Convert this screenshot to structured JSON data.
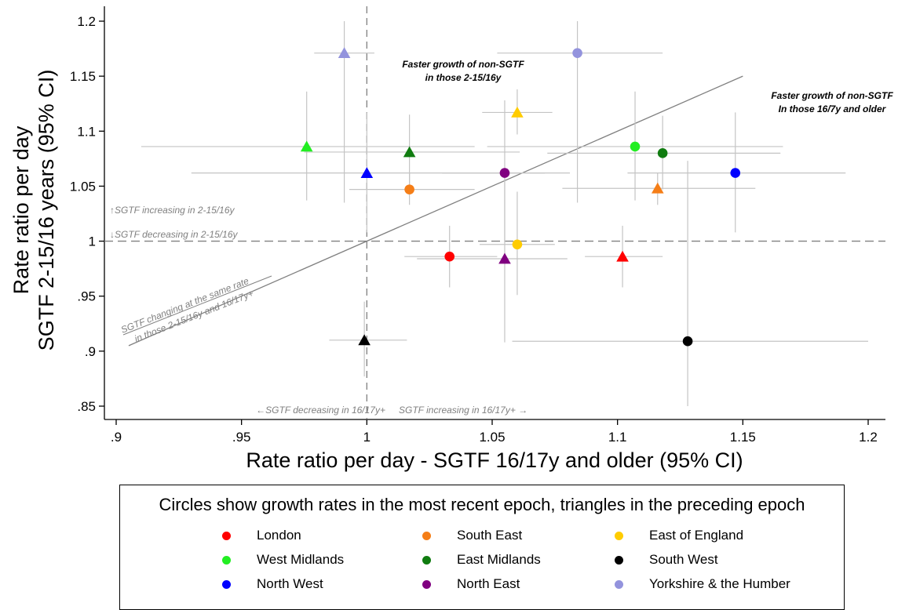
{
  "chart_data": {
    "type": "scatter",
    "xlabel": "Rate ratio per day - SGTF 16/17y and older (95% CI)",
    "ylabel_line1": "Rate ratio per day",
    "ylabel_line2": "SGTF 2-15/16 years (95% CI)",
    "xlim": [
      0.9,
      1.2
    ],
    "ylim": [
      0.85,
      1.2
    ],
    "x_ticks": [
      0.9,
      0.95,
      1.0,
      1.05,
      1.1,
      1.15,
      1.2
    ],
    "x_tick_labels": [
      ".9",
      ".95",
      "1",
      "1.05",
      "1.1",
      "1.15",
      "1.2"
    ],
    "y_ticks": [
      0.85,
      0.9,
      0.95,
      1.0,
      1.05,
      1.1,
      1.15,
      1.2
    ],
    "y_tick_labels": [
      ".85",
      ".9",
      ".95",
      "1",
      "1.05",
      "1.1",
      "1.15",
      "1.2"
    ],
    "grid": false,
    "reference_lines": {
      "vertical_x": 1.0,
      "horizontal_y": 1.0,
      "equal_rate_line": true
    },
    "annotations": {
      "top_center": [
        "Faster growth of non-SGTF",
        "in those 2-15/16y"
      ],
      "top_right": [
        "Faster growth of non-SGTF",
        "In those 16/7y and older"
      ],
      "h_above": "↑SGTF increasing in 2-15/16y",
      "h_below": "↓SGTF decreasing in 2-15/16y",
      "diag": [
        "SGTF changing at the same rate",
        "in those 2-15/16y and 16/17y+"
      ],
      "v_left": "←SGTF decreasing in 16/17y+",
      "v_right": "SGTF increasing in 16/17y+ →"
    },
    "legend_title": "Circles show growth rates in the most recent epoch, triangles in the preceding epoch",
    "series": [
      {
        "name": "London",
        "color": "#ff0000",
        "circle": {
          "x": 1.033,
          "y": 0.986,
          "xerr": [
            1.015,
            1.052
          ],
          "yerr": [
            0.958,
            1.014
          ]
        },
        "triangle": {
          "x": 1.102,
          "y": 0.986,
          "xerr": [
            1.087,
            1.118
          ],
          "yerr": [
            0.958,
            1.014
          ]
        }
      },
      {
        "name": "South East",
        "color": "#f57e17",
        "circle": {
          "x": 1.017,
          "y": 1.047,
          "xerr": [
            0.993,
            1.043
          ],
          "yerr": [
            1.033,
            1.062
          ]
        },
        "triangle": {
          "x": 1.116,
          "y": 1.048,
          "xerr": [
            1.078,
            1.155
          ],
          "yerr": [
            1.033,
            1.062
          ]
        }
      },
      {
        "name": "East of England",
        "color": "#ffcc00",
        "circle": {
          "x": 1.06,
          "y": 0.997,
          "xerr": [
            1.045,
            1.075
          ],
          "yerr": [
            0.951,
            1.045
          ]
        },
        "triangle": {
          "x": 1.06,
          "y": 1.117,
          "xerr": [
            1.046,
            1.074
          ],
          "yerr": [
            1.097,
            1.138
          ]
        }
      },
      {
        "name": "West Midlands",
        "color": "#22ee22",
        "circle": {
          "x": 1.107,
          "y": 1.086,
          "xerr": [
            1.048,
            1.166
          ],
          "yerr": [
            1.037,
            1.136
          ]
        },
        "triangle": {
          "x": 0.976,
          "y": 1.086,
          "xerr": [
            0.91,
            1.043
          ],
          "yerr": [
            1.037,
            1.136
          ]
        }
      },
      {
        "name": "East Midlands",
        "color": "#107c10",
        "circle": {
          "x": 1.118,
          "y": 1.08,
          "xerr": [
            1.072,
            1.165
          ],
          "yerr": [
            1.047,
            1.114
          ]
        },
        "triangle": {
          "x": 1.017,
          "y": 1.081,
          "xerr": [
            0.975,
            1.061
          ],
          "yerr": [
            1.047,
            1.115
          ]
        }
      },
      {
        "name": "South West",
        "color": "#000000",
        "circle": {
          "x": 1.128,
          "y": 0.909,
          "xerr": [
            1.058,
            1.2
          ],
          "yerr": [
            0.85,
            1.073
          ]
        },
        "triangle": {
          "x": 0.999,
          "y": 0.91,
          "xerr": [
            0.985,
            1.016
          ],
          "yerr": [
            0.877,
            0.945
          ]
        }
      },
      {
        "name": "North West",
        "color": "#0000ff",
        "circle": {
          "x": 1.147,
          "y": 1.062,
          "xerr": [
            1.104,
            1.191
          ],
          "yerr": [
            1.008,
            1.117
          ]
        },
        "triangle": {
          "x": 1.0,
          "y": 1.062,
          "xerr": [
            0.93,
            1.071
          ],
          "yerr": [
            1.008,
            1.117
          ]
        }
      },
      {
        "name": "North East",
        "color": "#800080",
        "circle": {
          "x": 1.055,
          "y": 1.062,
          "xerr": [
            1.03,
            1.081
          ],
          "yerr": [
            0.999,
            1.128
          ]
        },
        "triangle": {
          "x": 1.055,
          "y": 0.984,
          "xerr": [
            1.02,
            1.08
          ],
          "yerr": [
            0.908,
            1.062
          ]
        }
      },
      {
        "name": "Yorkshire & the Humber",
        "color": "#9393dd",
        "circle": {
          "x": 1.084,
          "y": 1.171,
          "xerr": [
            1.052,
            1.118
          ],
          "yerr": [
            1.035,
            1.2
          ]
        },
        "triangle": {
          "x": 0.991,
          "y": 1.171,
          "xerr": [
            0.979,
            1.003
          ],
          "yerr": [
            1.035,
            1.2
          ]
        }
      }
    ]
  }
}
